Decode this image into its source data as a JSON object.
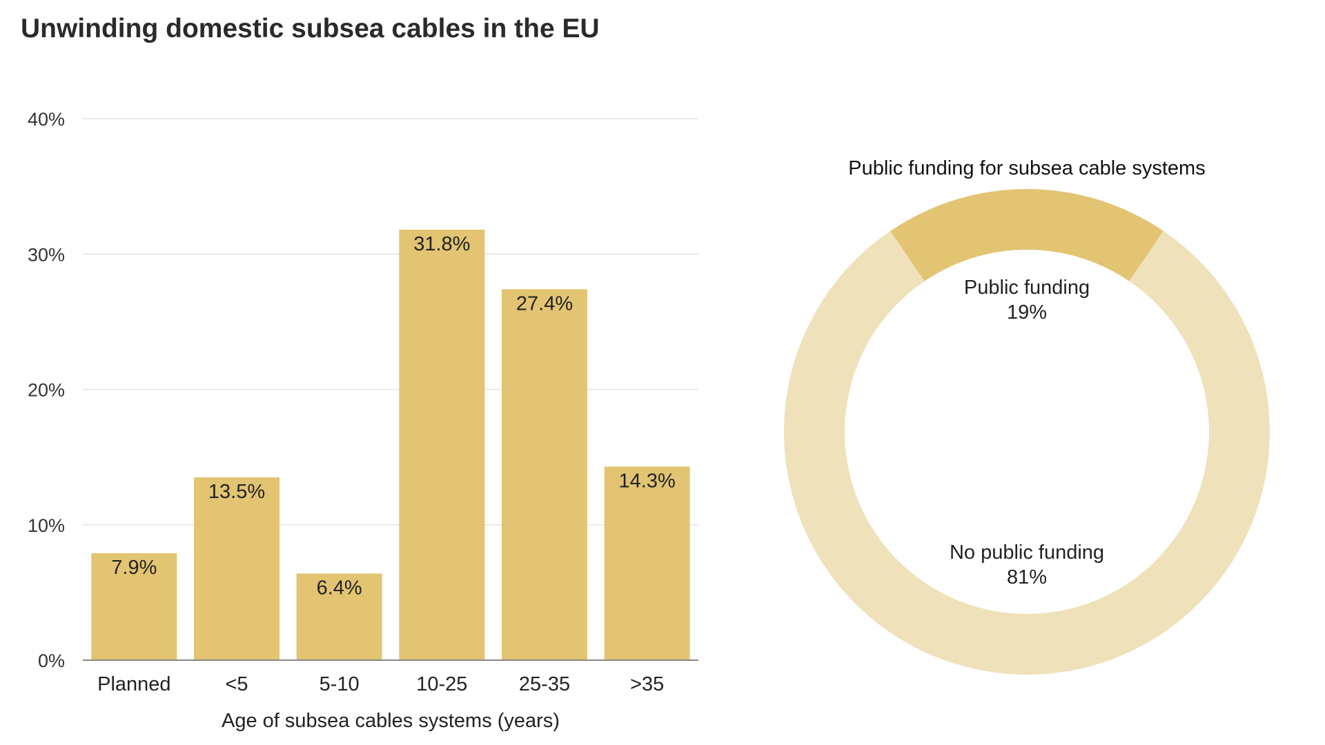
{
  "title": "Unwinding domestic subsea cables in the EU",
  "colors": {
    "bar": "#e2c472",
    "donut_public": "#e2c472",
    "donut_none": "#efe1b9",
    "grid": "#e3e3e3",
    "axis": "#888888"
  },
  "chart_data": [
    {
      "type": "bar",
      "categories": [
        "Planned",
        "<5",
        "5-10",
        "10-25",
        "25-35",
        ">35"
      ],
      "values": [
        7.9,
        13.5,
        6.4,
        31.8,
        27.4,
        14.3
      ],
      "value_labels": [
        "7.9%",
        "13.5%",
        "6.4%",
        "31.8%",
        "27.4%",
        "14.3%"
      ],
      "xlabel": "Age of subsea cables systems (years)",
      "ylabel": "",
      "ylim": [
        0,
        40
      ],
      "yticks": [
        0,
        10,
        20,
        30,
        40
      ],
      "ytick_labels": [
        "0%",
        "10%",
        "20%",
        "30%",
        "40%"
      ],
      "grid": true
    },
    {
      "type": "pie",
      "title": "Public funding for subsea cable systems",
      "slices": [
        {
          "label": "Public funding",
          "value": 19,
          "value_label": "19%"
        },
        {
          "label": "No public funding",
          "value": 81,
          "value_label": "81%"
        }
      ],
      "style": "donut"
    }
  ]
}
